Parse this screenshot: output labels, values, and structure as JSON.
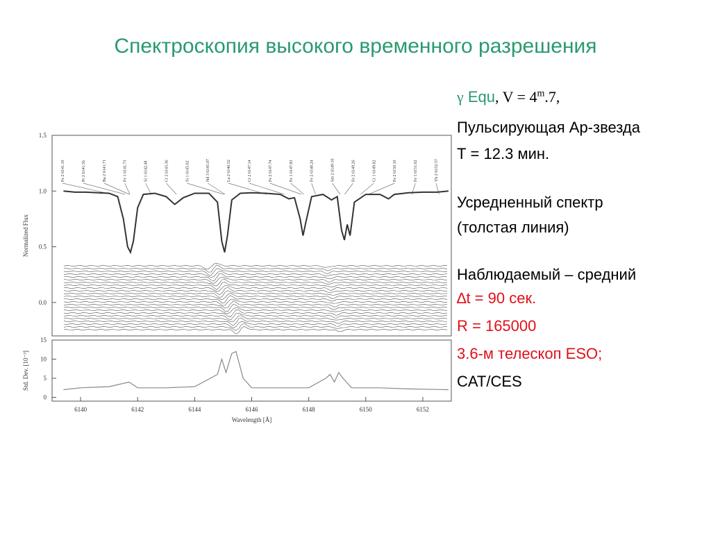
{
  "title": "Спектроскопия высокого временного разрешения",
  "star": {
    "symbol": "γ",
    "name": "Equ",
    "mag_prefix": ", V = 4",
    "mag_sup": "m",
    "mag_suffix": ".7,"
  },
  "notes": [
    "Пульсирующая Ар-звезда",
    "Т = 12.3 мин.",
    "Усредненный спектр",
    "(толстая линия)",
    "Наблюдаемый – средний"
  ],
  "params": [
    "∆t = 90 сек.",
    "R = 165000",
    "3.6-м телескоп ESO;"
  ],
  "instrument": "CAT/CES",
  "chart_data": [
    {
      "type": "line",
      "ylabel": "Normalized Flux",
      "xlim": [
        6139,
        6153
      ],
      "ylim": [
        -0.3,
        1.5
      ],
      "yticks": [
        {
          "value": 0,
          "label": "0.0"
        },
        0.5,
        {
          "value": 1,
          "label": "1.0"
        },
        {
          "value": 1.5,
          "label": "1.5"
        }
      ],
      "x": [
        6139.4,
        6139.8,
        6140.2,
        6140.6,
        6141.0,
        6141.3,
        6141.5,
        6141.65,
        6141.75,
        6141.85,
        6142.0,
        6142.2,
        6142.6,
        6143.0,
        6143.3,
        6143.6,
        6144.0,
        6144.5,
        6144.8,
        6144.95,
        6145.05,
        6145.15,
        6145.3,
        6145.6,
        6146.0,
        6146.5,
        6147.0,
        6147.3,
        6147.5,
        6147.7,
        6147.8,
        6147.9,
        6148.1,
        6148.5,
        6148.8,
        6149.0,
        6149.15,
        6149.25,
        6149.35,
        6149.45,
        6149.6,
        6150.0,
        6150.5,
        6150.8,
        6151.0,
        6151.5,
        6152.0,
        6152.5,
        6152.9
      ],
      "series": [
        {
          "color": "#333333",
          "values": [
            1.0,
            0.99,
            0.99,
            0.985,
            0.98,
            0.95,
            0.75,
            0.5,
            0.45,
            0.55,
            0.85,
            0.97,
            0.98,
            0.95,
            0.88,
            0.94,
            0.98,
            0.98,
            0.9,
            0.55,
            0.45,
            0.6,
            0.92,
            0.98,
            0.985,
            0.98,
            0.97,
            0.93,
            0.94,
            0.75,
            0.6,
            0.72,
            0.95,
            0.97,
            0.92,
            0.95,
            0.65,
            0.56,
            0.7,
            0.6,
            0.9,
            0.97,
            0.97,
            0.93,
            0.97,
            0.985,
            0.99,
            0.99,
            1.0
          ]
        }
      ],
      "annotations": [
        {
          "text": "Fe 2 6141.10",
          "x": 6141.1
        },
        {
          "text": "Pr 2 6141.56",
          "x": 6141.56
        },
        {
          "text": "Ba 2 6141.71",
          "x": 6141.71
        },
        {
          "text": "Fe 1 6141.73",
          "x": 6141.73
        },
        {
          "text": "Si 1 6142.48",
          "x": 6142.48
        },
        {
          "text": "Cr 2 6143.36",
          "x": 6143.36
        },
        {
          "text": "Si 1 6145.02",
          "x": 6145.02
        },
        {
          "text": "Nd 3 6145.07",
          "x": 6145.07
        },
        {
          "text": "La 2 6146.52",
          "x": 6146.52
        },
        {
          "text": "Cr 2 6147.14",
          "x": 6147.14
        },
        {
          "text": "Fe 2 6147.74",
          "x": 6147.74
        },
        {
          "text": "Fe 1 6147.83",
          "x": 6147.83
        },
        {
          "text": "Fe 2 6148.24",
          "x": 6148.24
        },
        {
          "text": "Sm 2 6149.10",
          "x": 6149.1
        },
        {
          "text": "Fe 2 6149.26",
          "x": 6149.26
        },
        {
          "text": "Cr 1 6149.82",
          "x": 6149.82
        },
        {
          "text": "Fe 2 6150.10",
          "x": 6150.1
        },
        {
          "text": "Fe 1 6151.62",
          "x": 6151.62
        },
        {
          "text": "Yb 2 6152.57",
          "x": 6152.57
        }
      ]
    },
    {
      "type": "line",
      "ylabel": "Std. Dev. [10⁻³]",
      "xlabel": "Wavelength [Å]",
      "xlim": [
        6139,
        6153
      ],
      "ylim": [
        -1,
        15
      ],
      "xticks": [
        6140,
        6142,
        6144,
        6146,
        6148,
        6150,
        6152
      ],
      "yticks": [
        0,
        5,
        10,
        15
      ],
      "x": [
        6139.4,
        6140,
        6141,
        6141.7,
        6142,
        6143,
        6144,
        6144.8,
        6144.95,
        6145.1,
        6145.3,
        6145.45,
        6145.7,
        6146,
        6147,
        6148,
        6148.6,
        6148.75,
        6148.9,
        6149.05,
        6149.2,
        6149.5,
        6150.5,
        6151.5,
        6152.9
      ],
      "series": [
        {
          "color": "#888888",
          "values": [
            2,
            2.5,
            2.8,
            4,
            2.5,
            2.5,
            2.8,
            6,
            10,
            6.5,
            11.5,
            12,
            5,
            2.5,
            2.5,
            2.5,
            5,
            6,
            4,
            6.5,
            5,
            2.5,
            2.5,
            2.2,
            2
          ]
        }
      ]
    }
  ]
}
